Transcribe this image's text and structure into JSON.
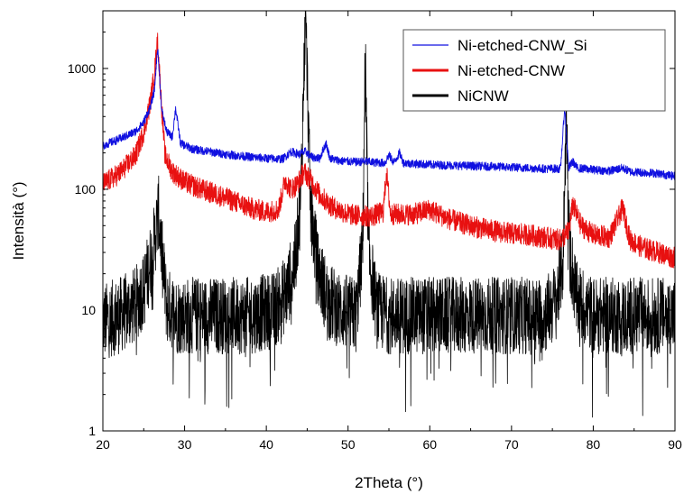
{
  "chart_data": {
    "type": "line",
    "xlabel": "2Theta (°)",
    "ylabel": "Intensità (°)",
    "xlim": [
      20,
      90
    ],
    "ylim": [
      1,
      3000
    ],
    "y_scale": "log",
    "x_ticks": [
      "20",
      "30",
      "40",
      "50",
      "60",
      "70",
      "80",
      "90"
    ],
    "y_ticks": [
      "1",
      "10",
      "100",
      "1000"
    ],
    "legend_position": "top-right",
    "grid": false,
    "series": [
      {
        "name": "Ni-etched-CNW_Si",
        "color": "#1010e0",
        "x": [
          20,
          22,
          24,
          25,
          25.8,
          26.3,
          26.7,
          27.2,
          27.8,
          28.5,
          28.9,
          29.5,
          31,
          33,
          35,
          38,
          40,
          42,
          43,
          44,
          44.8,
          45.5,
          46.5,
          47.3,
          47.8,
          49,
          51,
          52.1,
          53,
          54.5,
          55,
          55.6,
          56.3,
          56.8,
          58,
          60,
          62,
          65,
          68,
          70,
          72,
          74,
          76,
          76.5,
          77,
          77.5,
          78,
          80,
          82,
          83.6,
          84.5,
          86,
          88,
          90
        ],
        "y": [
          230,
          260,
          300,
          360,
          480,
          650,
          1500,
          450,
          300,
          270,
          470,
          240,
          215,
          205,
          195,
          185,
          180,
          178,
          205,
          195,
          205,
          185,
          180,
          240,
          180,
          172,
          168,
          170,
          167,
          165,
          192,
          166,
          200,
          165,
          163,
          160,
          158,
          156,
          154,
          152,
          150,
          148,
          148,
          470,
          150,
          170,
          150,
          145,
          142,
          150,
          140,
          138,
          135,
          128
        ]
      },
      {
        "name": "Ni-etched-CNW",
        "color": "#e81010",
        "x": [
          20,
          22,
          24,
          25,
          25.8,
          26.3,
          26.7,
          27.1,
          27.6,
          28.5,
          30,
          32,
          34,
          36,
          38,
          40,
          41.5,
          42.3,
          43,
          43.8,
          44.6,
          45.4,
          46.5,
          48,
          50,
          52.1,
          53,
          54.3,
          54.7,
          55.2,
          56,
          58,
          60,
          62,
          64,
          66,
          68,
          70,
          72,
          74,
          76,
          76.6,
          77,
          77.5,
          78.5,
          80,
          82,
          83.6,
          84.5,
          86,
          88,
          90
        ],
        "y": [
          110,
          135,
          190,
          300,
          520,
          900,
          1700,
          600,
          190,
          140,
          115,
          100,
          90,
          80,
          70,
          65,
          68,
          120,
          100,
          110,
          140,
          120,
          90,
          72,
          62,
          60,
          60,
          65,
          140,
          62,
          62,
          62,
          68,
          58,
          52,
          48,
          45,
          43,
          42,
          40,
          38,
          42,
          45,
          75,
          50,
          42,
          40,
          70,
          38,
          33,
          30,
          27
        ]
      },
      {
        "name": "NiCNW",
        "color": "#000000",
        "x": [
          20,
          22,
          24,
          25,
          26,
          26.5,
          26.8,
          27.2,
          27.8,
          29,
          31,
          33,
          35,
          38,
          41,
          42.5,
          43.5,
          44.2,
          44.8,
          45.4,
          46.3,
          47.5,
          49,
          51,
          51.8,
          52.1,
          52.5,
          53.5,
          55,
          57,
          60,
          63,
          66,
          69,
          72,
          74,
          75.5,
          76.3,
          76.7,
          77.1,
          78,
          80,
          83,
          86,
          88,
          90
        ],
        "y": [
          8,
          9,
          11,
          15,
          28,
          45,
          65,
          30,
          11,
          9,
          9,
          9,
          9,
          9,
          10,
          14,
          25,
          80,
          3000,
          70,
          22,
          12,
          10,
          9,
          35,
          1400,
          30,
          10,
          9,
          9,
          9,
          9,
          9,
          9,
          9,
          9,
          12,
          25,
          430,
          30,
          12,
          9,
          9,
          9,
          9,
          9
        ]
      }
    ]
  }
}
